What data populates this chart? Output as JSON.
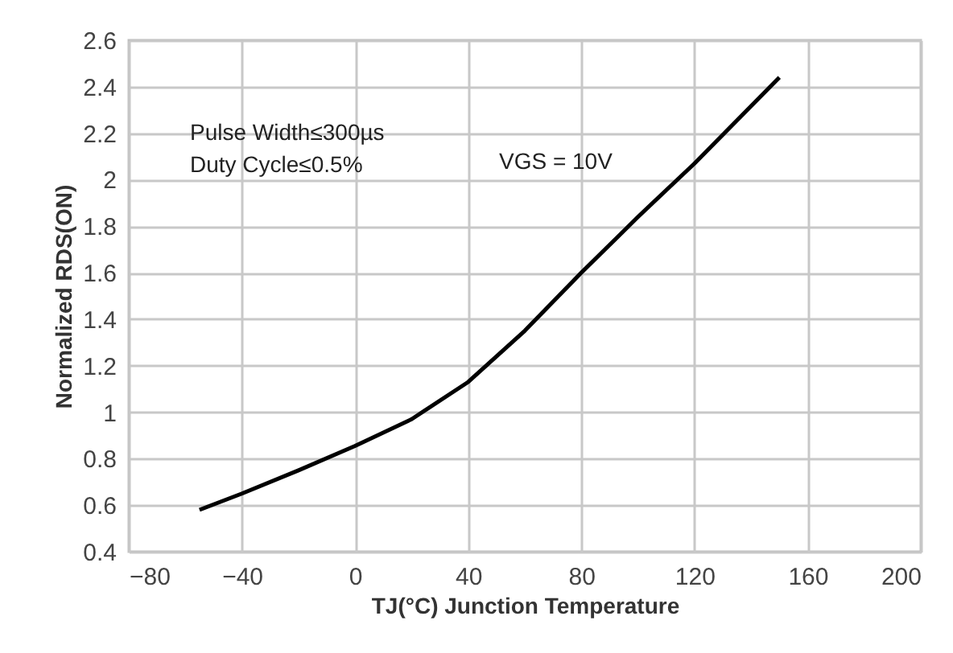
{
  "chart_data": {
    "type": "line",
    "xlabel": "TJ(°C) Junction Temperature",
    "ylabel": "Normalized RDS(ON)",
    "x": [
      -55,
      -40,
      -20,
      0,
      20,
      40,
      60,
      80,
      100,
      120,
      150
    ],
    "series": [
      {
        "color": "#000000",
        "values": [
          0.58,
          0.65,
          0.75,
          0.855,
          0.97,
          1.13,
          1.35,
          1.6,
          1.84,
          2.07,
          2.44
        ]
      }
    ],
    "xlim": [
      -80,
      200
    ],
    "xticks": [
      -80,
      -40,
      0,
      40,
      80,
      120,
      160,
      200
    ],
    "ylim": [
      0.4,
      2.6
    ],
    "yticks": [
      0.4,
      0.6,
      0.8,
      1,
      1.2,
      1.4,
      1.6,
      1.8,
      2,
      2.2,
      2.4,
      2.6
    ],
    "grid": true,
    "line_style": "solid",
    "marker": "none",
    "annotations": [
      "Pulse Width≤300µs\nDuty Cycle≤0.5%",
      "VGS = 10V"
    ]
  }
}
